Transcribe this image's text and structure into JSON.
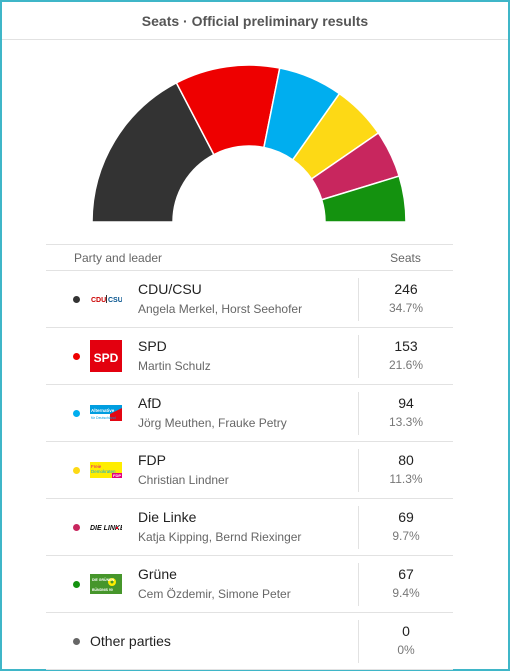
{
  "header": {
    "title": "Seats · Official preliminary results"
  },
  "table": {
    "col_party": "Party and leader",
    "col_seats": "Seats"
  },
  "parties": [
    {
      "name": "CDU/CSU",
      "leader": "Angela Merkel, Horst Seehofer",
      "seats": "246",
      "pct": "34.7%",
      "color": "#333333",
      "logo_text": "CDU|CSU"
    },
    {
      "name": "SPD",
      "leader": "Martin Schulz",
      "seats": "153",
      "pct": "21.6%",
      "color": "#ee0000",
      "logo_text": "SPD"
    },
    {
      "name": "AfD",
      "leader": "Jörg Meuthen, Frauke Petry",
      "seats": "94",
      "pct": "13.3%",
      "color": "#00aeef",
      "logo_text": "Alternative für Deutschland"
    },
    {
      "name": "FDP",
      "leader": "Christian Lindner",
      "seats": "80",
      "pct": "11.3%",
      "color": "#fdd915",
      "logo_text": "Freie Demokraten FDP"
    },
    {
      "name": "Die Linke",
      "leader": "Katja Kipping, Bernd Riexinger",
      "seats": "69",
      "pct": "9.7%",
      "color": "#c8265e",
      "logo_text": "DIE LINKE."
    },
    {
      "name": "Grüne",
      "leader": "Cem Özdemir, Simone Peter",
      "seats": "67",
      "pct": "9.4%",
      "color": "#14920f",
      "logo_text": "BÜNDNIS 90 DIE GRÜNEN"
    },
    {
      "name": "Other parties",
      "leader": "",
      "seats": "0",
      "pct": "0%",
      "color": "#666666",
      "logo_text": ""
    }
  ],
  "chart_data": {
    "type": "pie",
    "shape": "half-donut",
    "title": "Seats · Official preliminary results",
    "categories": [
      "CDU/CSU",
      "SPD",
      "AfD",
      "FDP",
      "Die Linke",
      "Grüne"
    ],
    "values": [
      246,
      153,
      94,
      80,
      69,
      67
    ],
    "colors": [
      "#333333",
      "#ee0000",
      "#00aeef",
      "#fdd915",
      "#c8265e",
      "#14920f"
    ]
  }
}
